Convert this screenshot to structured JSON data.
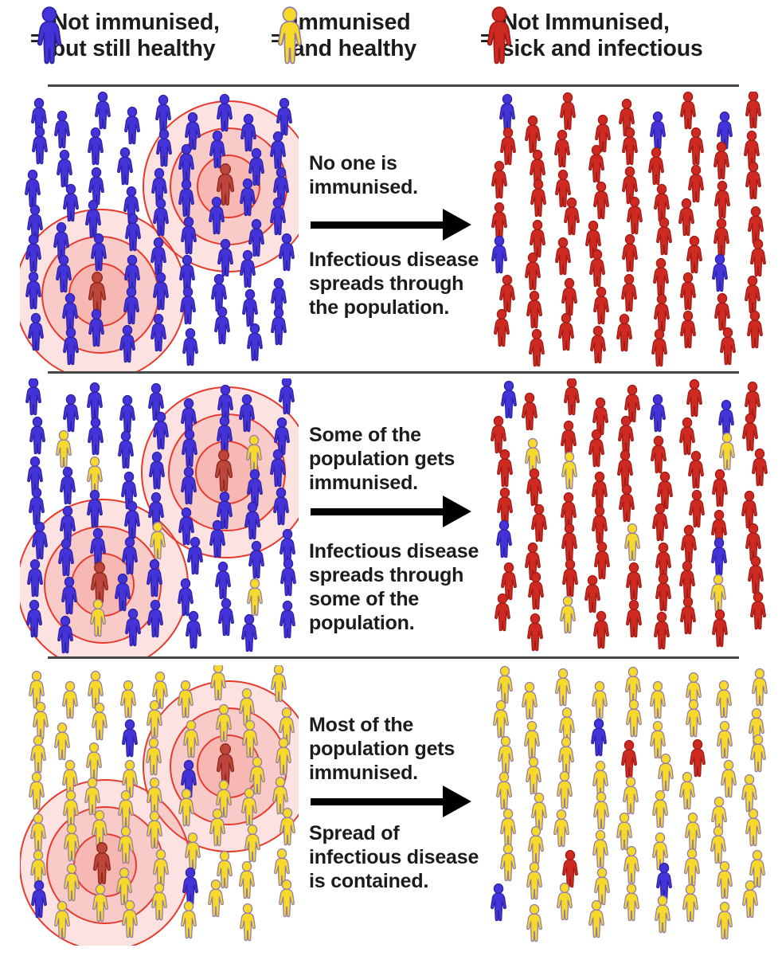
{
  "colors": {
    "blue": "#4433d8",
    "blue_stroke": "#2e22a6",
    "yellow": "#f6d92b",
    "yellow_stroke": "#937ca6",
    "red": "#ce2a22",
    "red_stroke": "#a11b14",
    "source": "#bc463b",
    "source_stroke": "#93291f",
    "ring_stroke": "#e73a2e",
    "ring_fill": "rgba(240,90,80,0.17)",
    "divider": "#474747",
    "text": "#1c1c1a"
  },
  "legend": {
    "equals": "=",
    "items": [
      {
        "figure": "B",
        "meaning": "not-immunised-healthy",
        "label": "Not immunised,\nbut still healthy"
      },
      {
        "figure": "Y",
        "meaning": "immunised-healthy",
        "label": "Immunised\nand healthy"
      },
      {
        "figure": "R",
        "meaning": "not-immunised-sick",
        "label": "Not Immunised,\nsick and infectious"
      }
    ]
  },
  "ripple_radii": [
    38,
    72,
    106
  ],
  "rows": [
    {
      "id": "no-one-immunised",
      "caption_top": "No one is\nimmunised.",
      "caption_bottom": "Infectious disease\nspreads through\nthe population.",
      "left": {
        "circles": true,
        "grid": [
          "BBBBBBBBB",
          "BBBBBBBBB",
          "BBBBBBSBB",
          "BBBBBBBBB",
          "BBBBBBBBB",
          "BBSBBBBBB",
          "BBBBBBBBB"
        ]
      },
      "right": {
        "circles": false,
        "grid": [
          "BRRRRBRBR",
          "RRRRRRRRR",
          "RRRRRRRRR",
          "RRRRRRRRR",
          "BRRRRRRBR",
          "RRRRRRRRR",
          "RRRRRRRRR"
        ]
      }
    },
    {
      "id": "some-immunised",
      "caption_top": "Some of the\npopulation gets\nimmunised.",
      "caption_bottom": "Infectious disease\nspreads through\nsome of the\npopulation.",
      "left": {
        "circles": true,
        "grid": [
          "BBBBBBBBB",
          "BYBBBBBYB",
          "BBYBBBSBB",
          "BBBBBBBBB",
          "BBBBYBBBB",
          "BBSBBBBYB",
          "BBYBBBBBB"
        ]
      },
      "right": {
        "circles": false,
        "grid": [
          "BRRRRBRBR",
          "RYRRRRRYR",
          "RRYRRRRRR",
          "RRRRRRRRR",
          "BRRRYRRBR",
          "RRRRRRRYR",
          "RRYRRRRRR"
        ]
      }
    },
    {
      "id": "most-immunised",
      "caption_top": "Most of the\npopulation gets\nimmunised.",
      "caption_bottom": "Spread of\ninfectious disease\nis contained.",
      "left": {
        "circles": true,
        "grid": [
          "YYYYYYYYY",
          "YYYBYYYYY",
          "YYYYYBSYY",
          "YYYYYYYYY",
          "YYYYYYYYY",
          "YYSYYBYYY",
          "BYYYYYYYY"
        ]
      },
      "right": {
        "circles": false,
        "grid": [
          "YYYYYYYYY",
          "YYYBYYYYY",
          "YYYYRYRYY",
          "YYYYYYYYY",
          "YYYYYYYYY",
          "YYRYYBYYY",
          "BYYYYYYYY"
        ]
      }
    }
  ]
}
